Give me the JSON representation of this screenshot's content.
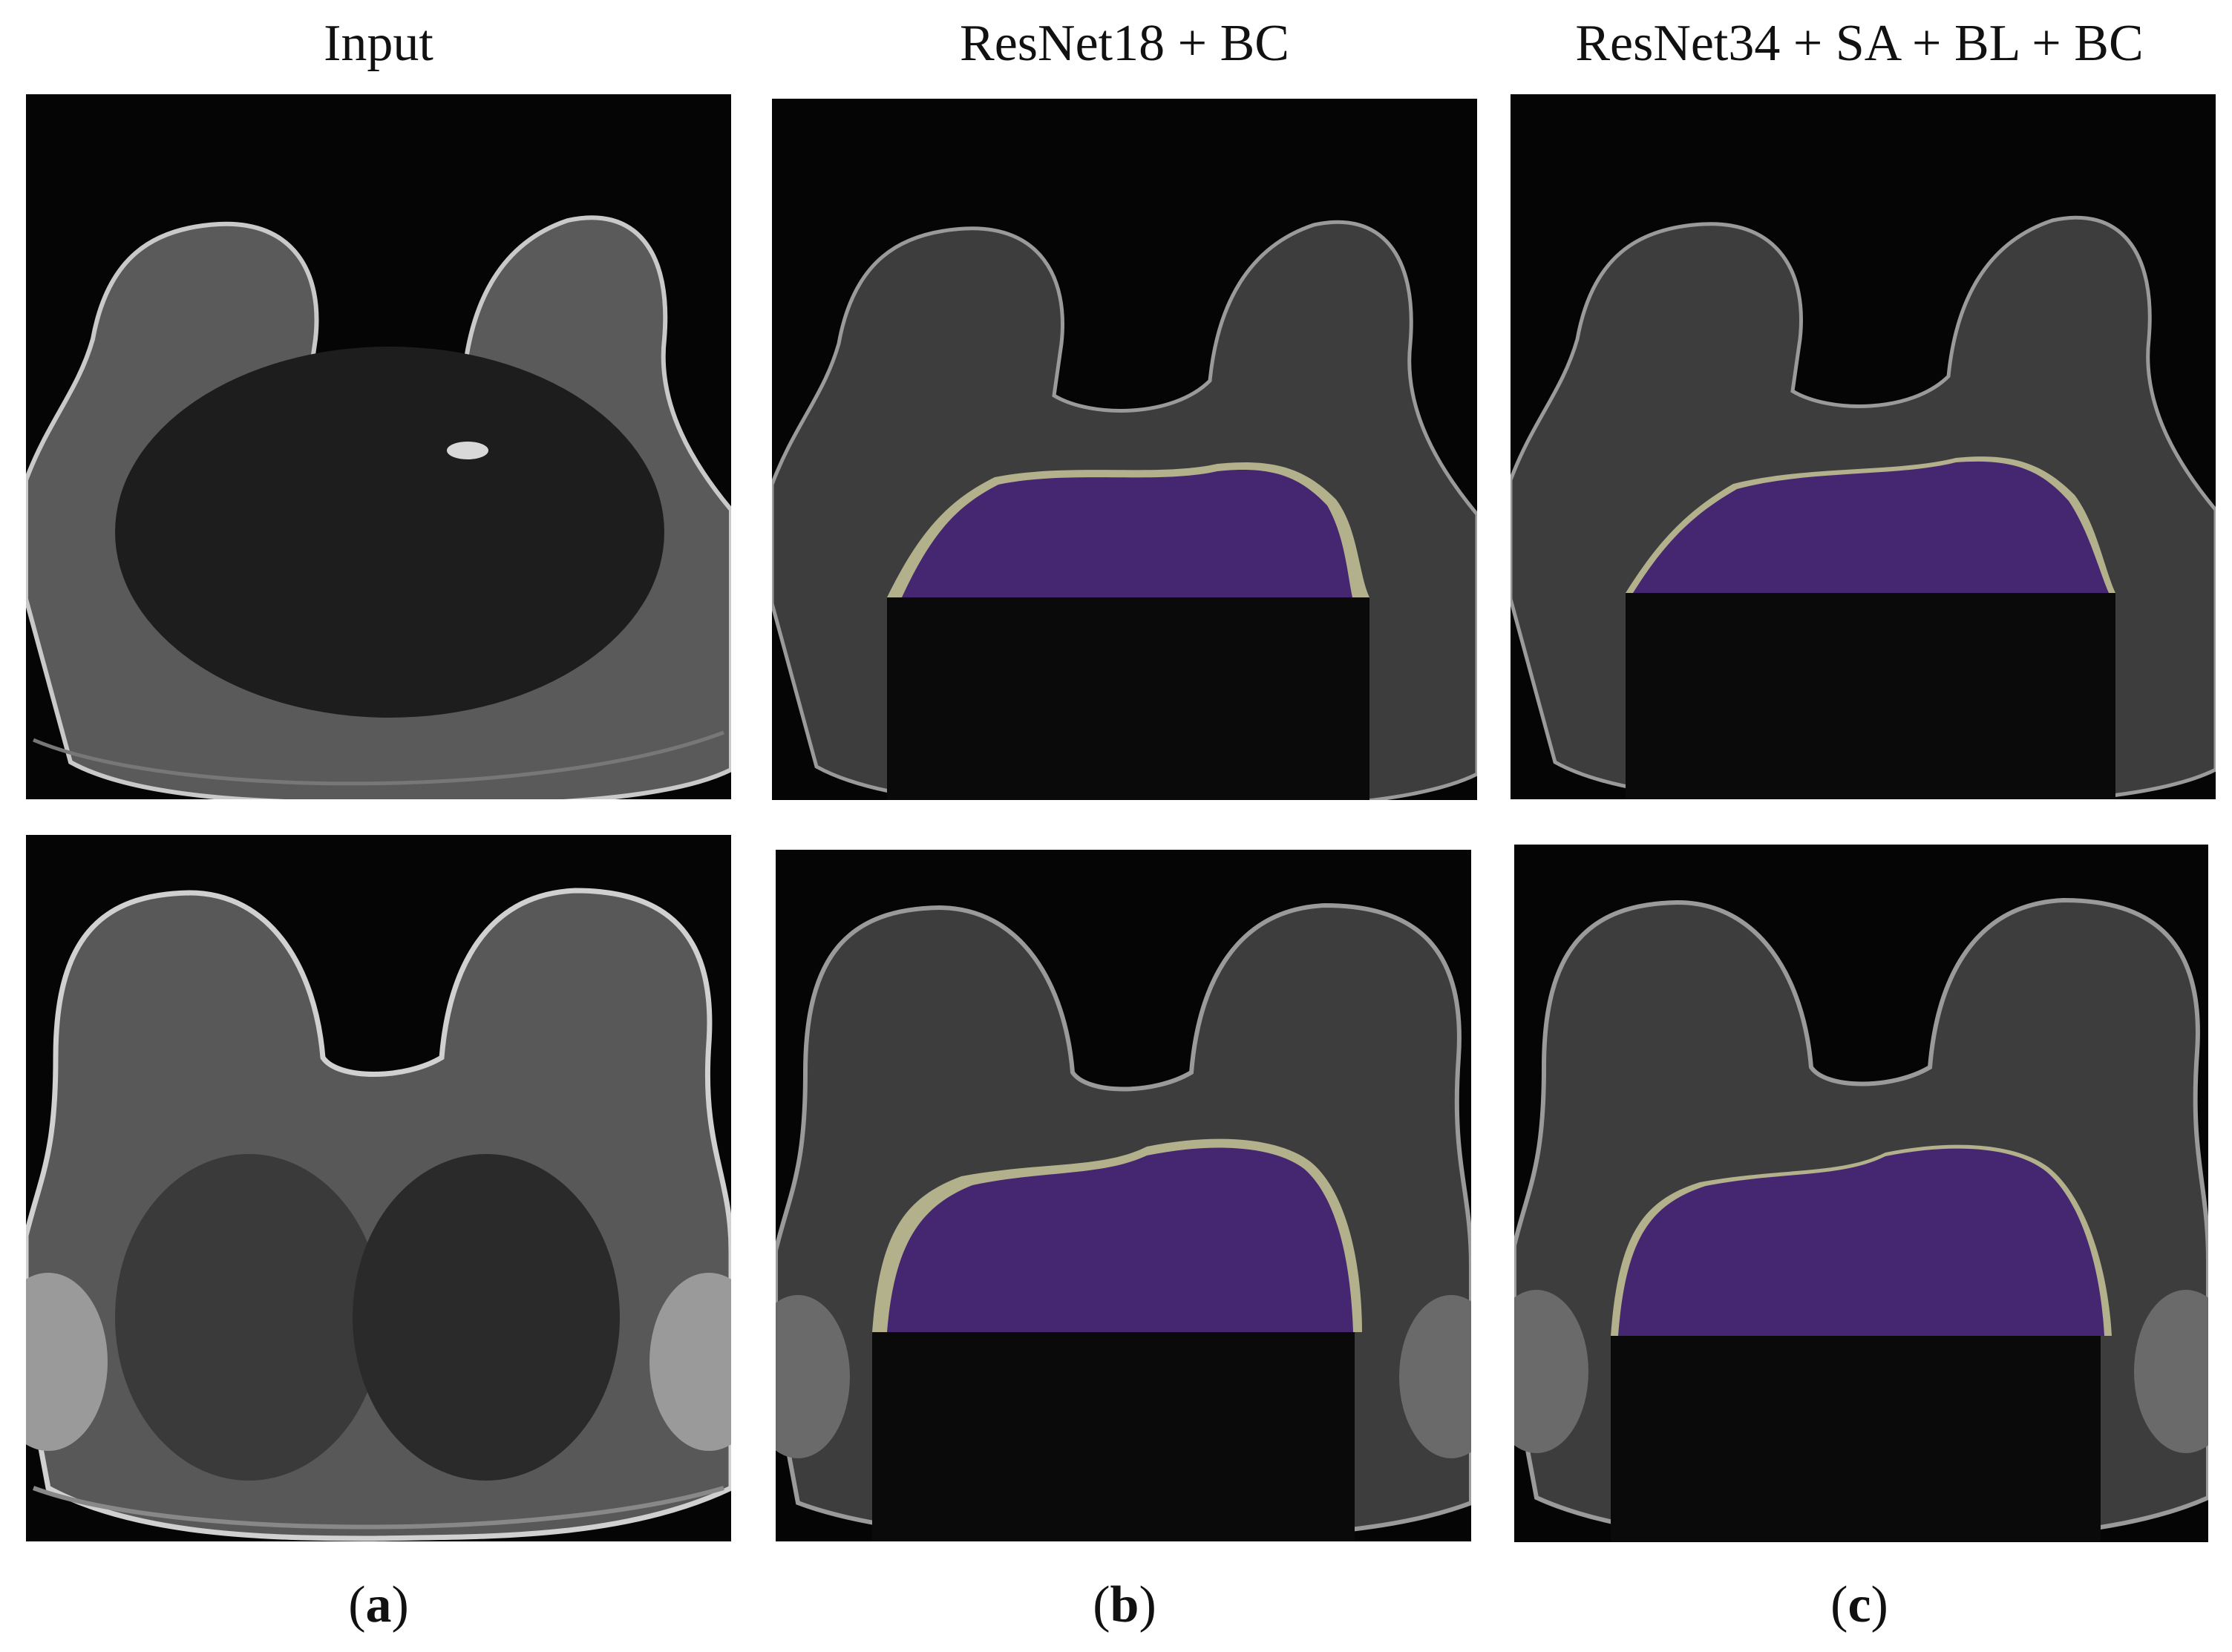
{
  "columns": [
    {
      "title": "Input",
      "label_letter": "a"
    },
    {
      "title": "ResNet18 + BC",
      "label_letter": "b"
    },
    {
      "title": "ResNet34 + SA + BL + BC",
      "label_letter": "c"
    }
  ],
  "label_open": "(",
  "label_close": ")",
  "colors": {
    "background": "#ffffff",
    "scan_background": "#050505",
    "tissue": "#6e6e6e",
    "mask_fill": "#3c1a6e",
    "mask_edge": "#c8c49a"
  }
}
